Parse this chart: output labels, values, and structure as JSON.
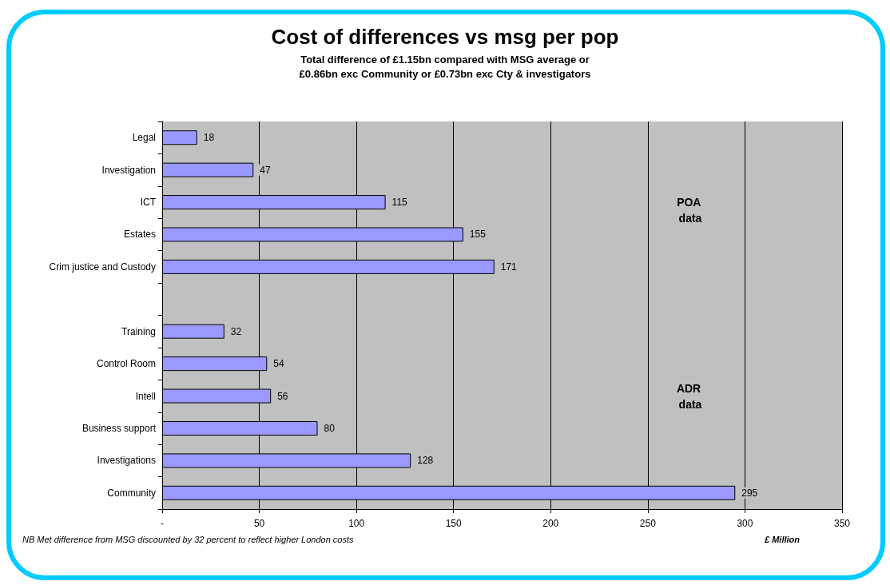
{
  "chart_data": {
    "type": "bar",
    "orientation": "horizontal",
    "title": "Cost of differences vs msg per pop",
    "subtitle": "Total difference of £1.15bn compared with MSG average or\n£0.86bn exc Community or £0.73bn exc Cty & investigators",
    "categories": [
      "Legal",
      "Investigation",
      "ICT",
      "Estates",
      "Crim justice and Custody",
      null,
      "Training",
      "Control Room",
      "Intell",
      "Business support",
      "Investigations",
      "Community"
    ],
    "values": [
      18,
      47,
      115,
      155,
      171,
      null,
      32,
      54,
      56,
      80,
      128,
      295
    ],
    "color": "#9999ff",
    "xlim": [
      0,
      350
    ],
    "xticks": [
      {
        "value": 0,
        "label": "-"
      },
      50,
      100,
      150,
      200,
      250,
      300,
      350
    ],
    "grid": "x",
    "data_labels": true,
    "xlabel": "£ Million",
    "annotations": [
      "POA data",
      "ADR data",
      "NB Met difference from MSG discounted by 32 percent to reflect higher London costs"
    ]
  }
}
